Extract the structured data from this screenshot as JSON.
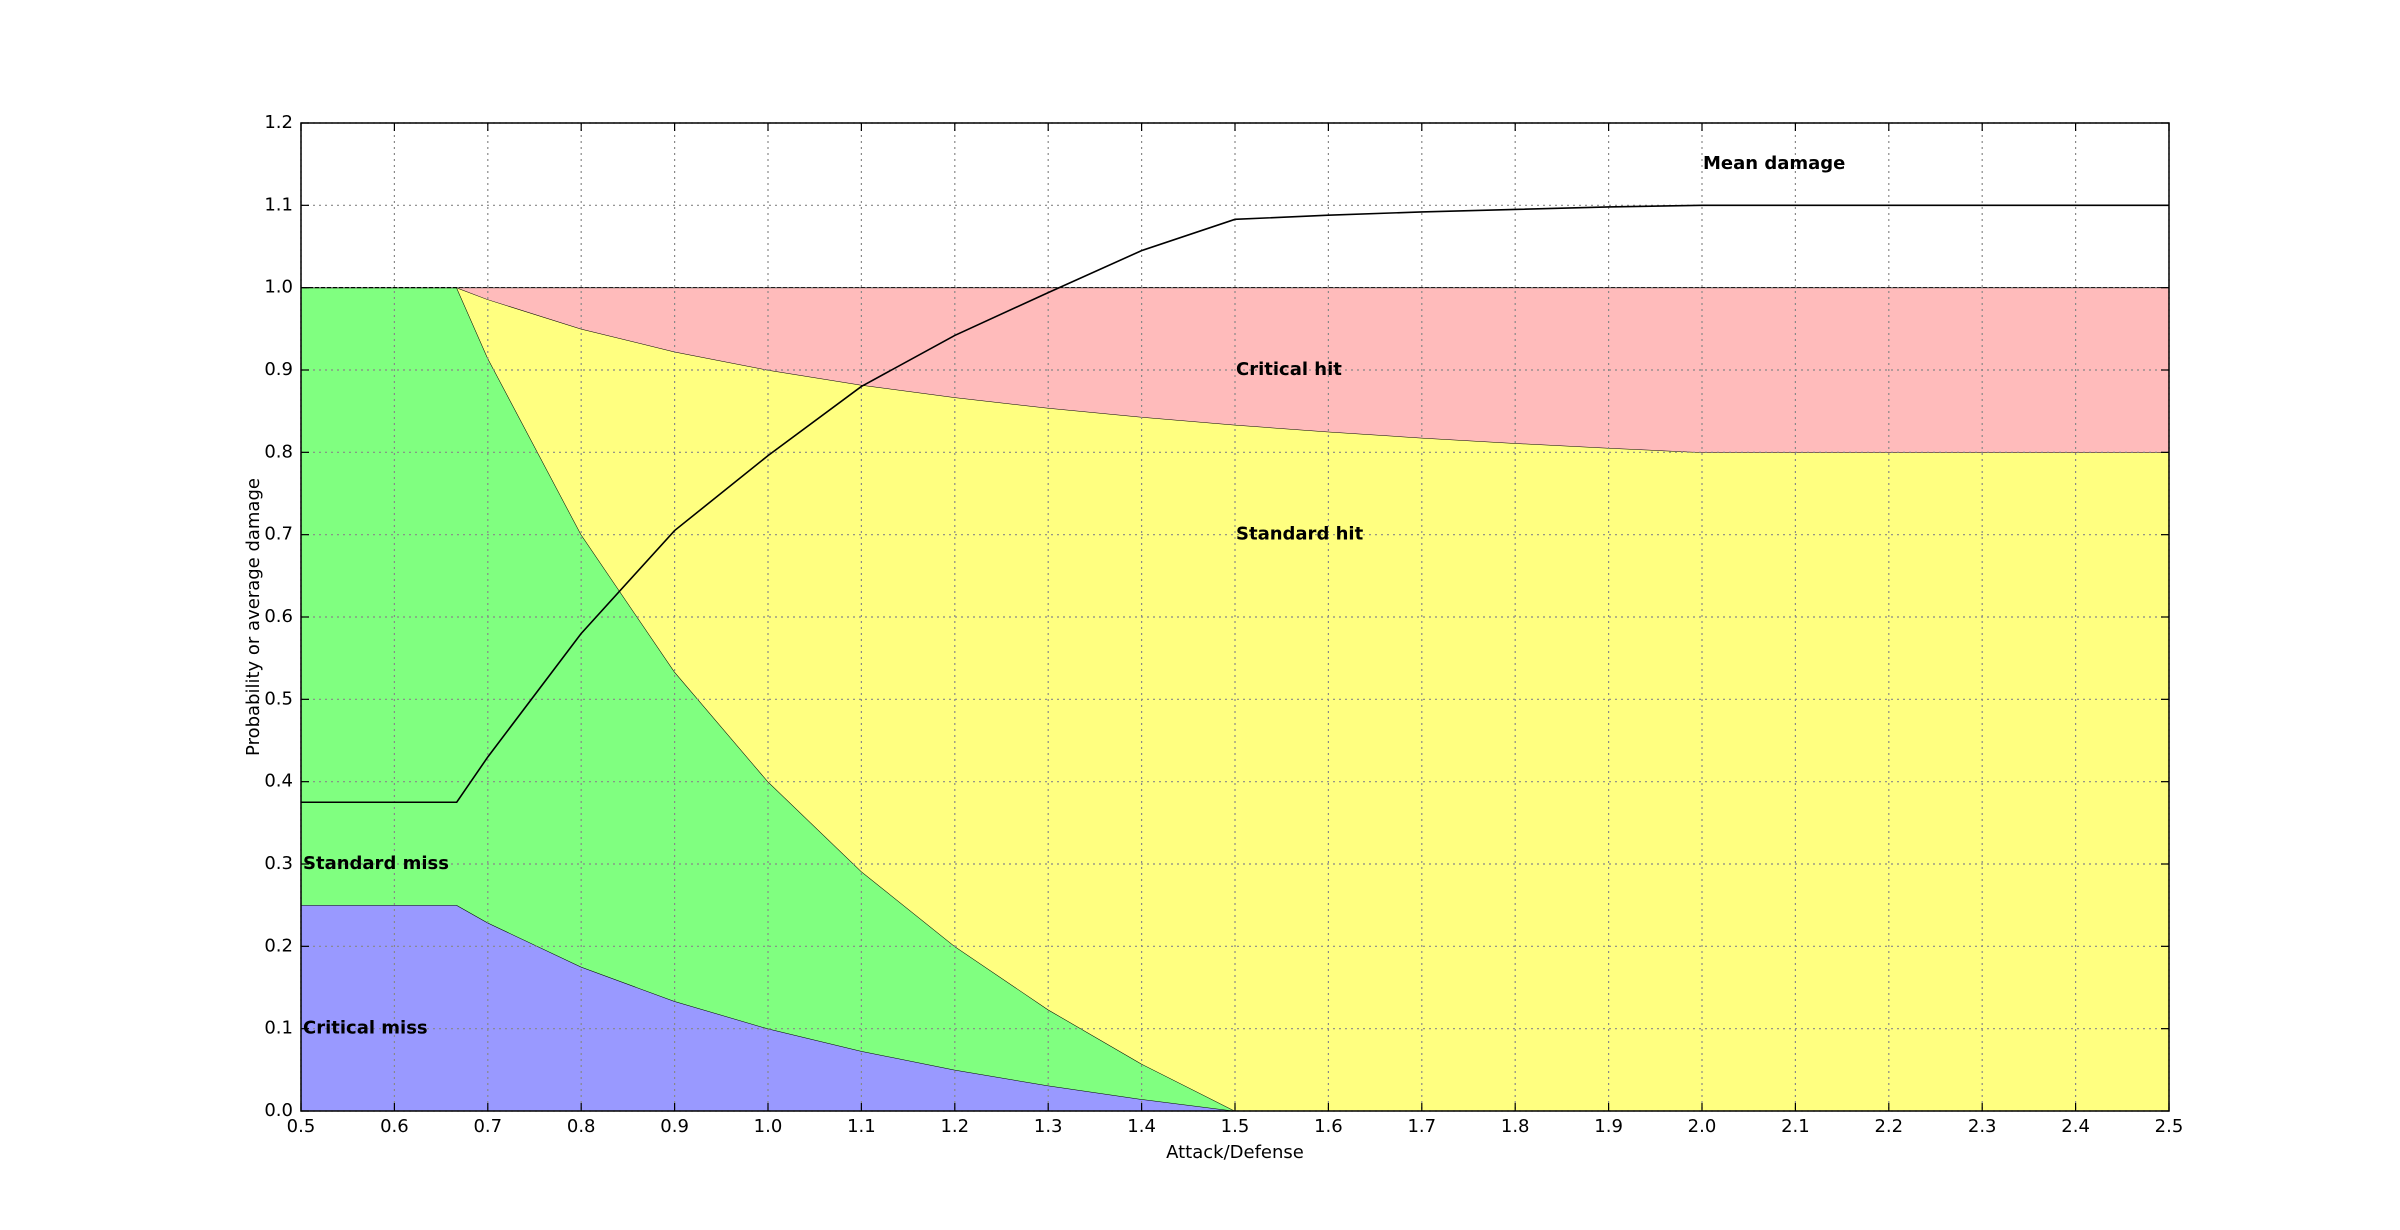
{
  "chart_data": {
    "type": "area",
    "xlabel": "Attack/Defense",
    "ylabel": "Probability or average damage",
    "x": [
      0.5,
      0.6667,
      0.7,
      0.8,
      0.9,
      1.0,
      1.1,
      1.2,
      1.3,
      1.4,
      1.5,
      1.6,
      1.7,
      1.8,
      1.9,
      2.0,
      2.5
    ],
    "series": [
      {
        "name": "Critical miss",
        "color": "#9999ff",
        "stacked": true,
        "values": [
          0.25,
          0.25,
          0.2286,
          0.175,
          0.1333,
          0.1,
          0.0727,
          0.05,
          0.0308,
          0.0143,
          0,
          0,
          0,
          0,
          0,
          0,
          0
        ]
      },
      {
        "name": "Standard miss",
        "color": "#80ff80",
        "stacked": true,
        "values": [
          0.75,
          0.75,
          0.6857,
          0.525,
          0.4,
          0.3,
          0.2182,
          0.15,
          0.0923,
          0.0429,
          0,
          0,
          0,
          0,
          0,
          0,
          0
        ]
      },
      {
        "name": "Standard hit",
        "color": "#ffff80",
        "stacked": true,
        "values": [
          0,
          0,
          0.0714,
          0.25,
          0.3889,
          0.5,
          0.5909,
          0.6667,
          0.7307,
          0.7857,
          0.8333,
          0.825,
          0.8176,
          0.8111,
          0.8053,
          0.8,
          0.8
        ]
      },
      {
        "name": "Critical hit",
        "color": "#ffbbbb",
        "stacked": true,
        "values": [
          0,
          0,
          0.0143,
          0.05,
          0.0778,
          0.1,
          0.1182,
          0.1333,
          0.1462,
          0.1571,
          0.1667,
          0.175,
          0.1824,
          0.1889,
          0.1947,
          0.2,
          0.2
        ]
      },
      {
        "name": "Mean damage",
        "color": "#000000",
        "stacked": false,
        "values": [
          0.375,
          0.375,
          0.43,
          0.58,
          0.705,
          0.796,
          0.88,
          0.942,
          0.994,
          1.045,
          1.083,
          1.088,
          1.092,
          1.095,
          1.098,
          1.1,
          1.1
        ]
      }
    ],
    "xlim": [
      0.5,
      2.5
    ],
    "ylim": [
      0,
      1.2
    ],
    "xticks": [
      0.5,
      0.6,
      0.7,
      0.8,
      0.9,
      {
        "value": 1,
        "label": "1.0"
      },
      1.1,
      1.2,
      1.3,
      1.4,
      1.5,
      1.6,
      1.7,
      1.8,
      1.9,
      {
        "value": 2,
        "label": "2.0"
      },
      2.1,
      2.2,
      2.3,
      2.4,
      2.5
    ],
    "yticks": [
      {
        "value": 0,
        "label": "0.0"
      },
      0.1,
      0.2,
      0.3,
      0.4,
      0.5,
      0.6,
      0.7,
      0.8,
      0.9,
      {
        "value": 1,
        "label": "1.0"
      },
      1.1,
      1.2
    ],
    "grid": true
  }
}
